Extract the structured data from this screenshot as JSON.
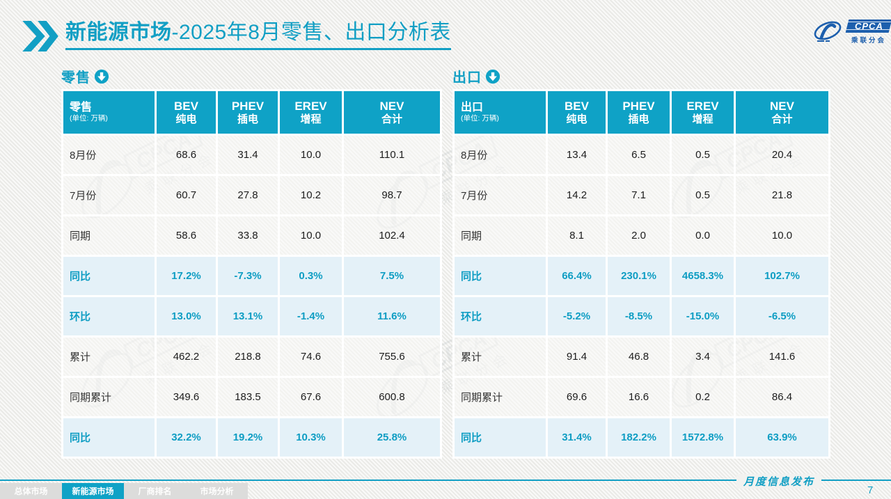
{
  "page": {
    "title_strong": "新能源市场",
    "title_rest": "-2025年8月零售、出口分析表",
    "footer_caption": "月度信息发布",
    "page_number": "7"
  },
  "logo": {
    "acronym": "CPCA",
    "org_name": "乘联分会"
  },
  "watermark": {
    "acronym": "CPCA",
    "org_name": "乘联分会"
  },
  "tables": [
    {
      "section_label": "零售",
      "header_label": "零售",
      "unit": "(单位: 万辆)",
      "columns": [
        {
          "line1": "BEV",
          "line2": "纯电"
        },
        {
          "line1": "PHEV",
          "line2": "插电"
        },
        {
          "line1": "EREV",
          "line2": "增程"
        },
        {
          "line1": "NEV",
          "line2": "合计"
        }
      ],
      "rows": [
        {
          "label": "8月份",
          "type": "normal",
          "values": [
            "68.6",
            "31.4",
            "10.0",
            "110.1"
          ]
        },
        {
          "label": "7月份",
          "type": "normal",
          "values": [
            "60.7",
            "27.8",
            "10.2",
            "98.7"
          ]
        },
        {
          "label": "同期",
          "type": "normal",
          "values": [
            "58.6",
            "33.8",
            "10.0",
            "102.4"
          ]
        },
        {
          "label": "同比",
          "type": "percent",
          "values": [
            "17.2%",
            "-7.3%",
            "0.3%",
            "7.5%"
          ]
        },
        {
          "label": "环比",
          "type": "percent",
          "values": [
            "13.0%",
            "13.1%",
            "-1.4%",
            "11.6%"
          ]
        },
        {
          "label": "累计",
          "type": "normal",
          "values": [
            "462.2",
            "218.8",
            "74.6",
            "755.6"
          ]
        },
        {
          "label": "同期累计",
          "type": "normal",
          "values": [
            "349.6",
            "183.5",
            "67.6",
            "600.8"
          ]
        },
        {
          "label": "同比",
          "type": "percent",
          "values": [
            "32.2%",
            "19.2%",
            "10.3%",
            "25.8%"
          ]
        }
      ]
    },
    {
      "section_label": "出口",
      "header_label": "出口",
      "unit": "(单位: 万辆)",
      "columns": [
        {
          "line1": "BEV",
          "line2": "纯电"
        },
        {
          "line1": "PHEV",
          "line2": "插电"
        },
        {
          "line1": "EREV",
          "line2": "增程"
        },
        {
          "line1": "NEV",
          "line2": "合计"
        }
      ],
      "rows": [
        {
          "label": "8月份",
          "type": "normal",
          "values": [
            "13.4",
            "6.5",
            "0.5",
            "20.4"
          ]
        },
        {
          "label": "7月份",
          "type": "normal",
          "values": [
            "14.2",
            "7.1",
            "0.5",
            "21.8"
          ]
        },
        {
          "label": "同期",
          "type": "normal",
          "values": [
            "8.1",
            "2.0",
            "0.0",
            "10.0"
          ]
        },
        {
          "label": "同比",
          "type": "percent",
          "values": [
            "66.4%",
            "230.1%",
            "4658.3%",
            "102.7%"
          ]
        },
        {
          "label": "环比",
          "type": "percent",
          "values": [
            "-5.2%",
            "-8.5%",
            "-15.0%",
            "-6.5%"
          ]
        },
        {
          "label": "累计",
          "type": "normal",
          "values": [
            "91.4",
            "46.8",
            "3.4",
            "141.6"
          ]
        },
        {
          "label": "同期累计",
          "type": "normal",
          "values": [
            "69.6",
            "16.6",
            "0.2",
            "86.4"
          ]
        },
        {
          "label": "同比",
          "type": "percent",
          "values": [
            "31.4%",
            "182.2%",
            "1572.8%",
            "63.9%"
          ]
        }
      ]
    }
  ],
  "footer": {
    "tabs": [
      {
        "label": "总体市场",
        "active": false
      },
      {
        "label": "新能源市场",
        "active": true
      },
      {
        "label": "厂商排名",
        "active": false
      },
      {
        "label": "市场分析",
        "active": false
      }
    ]
  }
}
